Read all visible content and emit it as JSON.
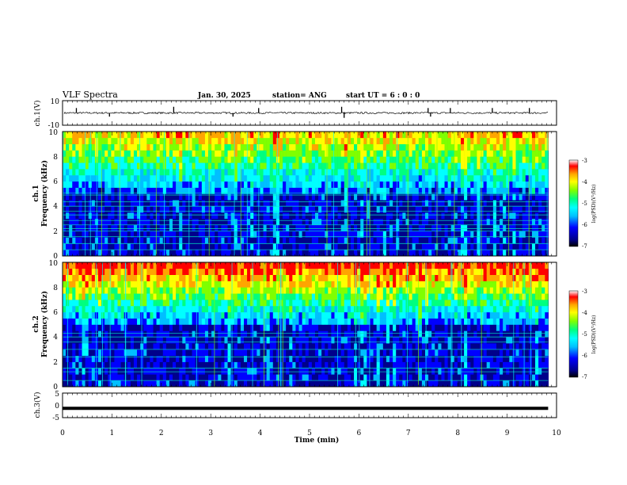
{
  "header": {
    "title": "VLF Spectra",
    "date": "Jan. 30, 2025",
    "station": "station= ANG",
    "start": "start  UT =   6 : 0  : 0"
  },
  "colors": {
    "ch1_trace": "#000000",
    "ch3_trace": "#000000",
    "colormap": [
      "#000000",
      "#00008b",
      "#0000ff",
      "#00bfff",
      "#00ffff",
      "#00ff7f",
      "#7fff00",
      "#ffff00",
      "#ffa500",
      "#ff0000",
      "#ffffff"
    ]
  },
  "chart_data": [
    {
      "id": "ch1_waveform",
      "type": "line",
      "ylabel": "ch.1(V)",
      "ylim": [
        -10,
        10
      ],
      "yticks": [
        "10",
        "-10"
      ],
      "xlim": [
        0,
        10
      ],
      "baseline": 0,
      "spikes": [
        {
          "x": 0.28,
          "y": 4
        },
        {
          "x": 0.95,
          "y": -3
        },
        {
          "x": 2.25,
          "y": 5
        },
        {
          "x": 3.45,
          "y": -3
        },
        {
          "x": 3.97,
          "y": 4
        },
        {
          "x": 5.65,
          "y": 5
        },
        {
          "x": 5.7,
          "y": -4
        },
        {
          "x": 7.4,
          "y": 4
        },
        {
          "x": 7.45,
          "y": -3
        },
        {
          "x": 7.85,
          "y": 4
        },
        {
          "x": 8.7,
          "y": 4
        },
        {
          "x": 9.45,
          "y": 4
        }
      ]
    },
    {
      "id": "ch1_spectrogram",
      "type": "heatmap",
      "ylabel_top": "ch.1",
      "ylabel": "Frequency  (kHz)",
      "ylim": [
        0,
        10
      ],
      "yticks": [
        "0",
        "2",
        "4",
        "6",
        "8",
        "10"
      ],
      "xlim": [
        0,
        10
      ],
      "colorbar": {
        "label": "log(PSD)(V²/Hz)",
        "range": [
          -7,
          -3
        ],
        "ticks": [
          "-3",
          "-4",
          "-5",
          "-6",
          "-7"
        ]
      },
      "line_frequencies_khz": [
        0.5,
        1.0,
        1.55,
        2.0,
        2.2,
        2.5,
        2.85,
        3.3,
        3.6,
        4.0,
        4.35,
        4.9,
        5.05
      ]
    },
    {
      "id": "ch2_spectrogram",
      "type": "heatmap",
      "ylabel_top": "ch.2",
      "ylabel": "Frequency  (kHz)",
      "ylim": [
        0,
        10
      ],
      "yticks": [
        "0",
        "2",
        "4",
        "6",
        "8",
        "10"
      ],
      "xlim": [
        0,
        10
      ],
      "colorbar": {
        "label": "log(PSD)(V²/Hz)",
        "range": [
          -7,
          -3
        ],
        "ticks": [
          "-3",
          "-4",
          "-5",
          "-6",
          "-7"
        ]
      },
      "line_frequencies_khz": [
        0.5,
        1.2,
        1.5,
        2.4,
        3.0,
        3.6,
        4.0,
        4.3
      ]
    },
    {
      "id": "ch3_waveform",
      "type": "line",
      "ylabel": "ch.3(V)",
      "ylim": [
        -5,
        5
      ],
      "yticks": [
        "5",
        "0",
        "-5"
      ],
      "xlim": [
        0,
        10
      ],
      "value": -1.2
    }
  ],
  "xaxis": {
    "label": "Time  (min)",
    "ticks": [
      "0",
      "1",
      "2",
      "3",
      "4",
      "5",
      "6",
      "7",
      "8",
      "9",
      "10"
    ],
    "range": [
      0,
      10
    ],
    "data_extent_max": 9.83
  }
}
